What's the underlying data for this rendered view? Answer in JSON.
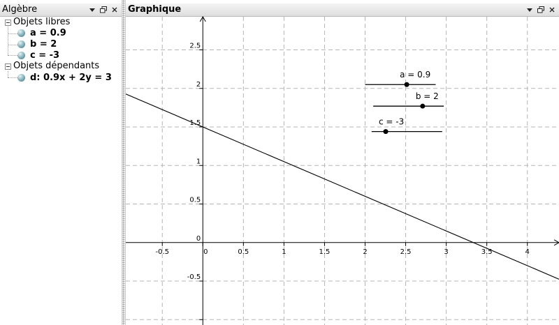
{
  "algebra": {
    "title": "Algèbre",
    "free_objects_label": "Objets libres",
    "dependent_objects_label": "Objets dépendants",
    "free_objects": [
      {
        "label": "a = 0.9"
      },
      {
        "label": "b = 2"
      },
      {
        "label": "c = -3"
      }
    ],
    "dependent_objects": [
      {
        "label": "d: 0.9x + 2y = 3"
      }
    ]
  },
  "graphics": {
    "title": "Graphique",
    "x_axis": {
      "min": -0.95,
      "max": 4.39,
      "ticks": [
        -0.5,
        0,
        0.5,
        1,
        1.5,
        2,
        2.5,
        3,
        3.5,
        4
      ],
      "tick_labels": [
        "-0.5",
        "0",
        "0.5",
        "1",
        "1.5",
        "2",
        "2.5",
        "3",
        "3.5",
        "4"
      ]
    },
    "y_axis": {
      "min": -1.07,
      "max": 2.93,
      "ticks": [
        -1,
        -0.5,
        0.5,
        1,
        1.5,
        2,
        2.5
      ],
      "tick_labels": [
        "",
        "-0.5",
        "0.5",
        "1",
        "1.5",
        "2",
        "2.5"
      ],
      "origin_label": "0"
    },
    "grid": true,
    "line": {
      "name": "d",
      "a": 0.9,
      "b": 2,
      "c": 3
    },
    "sliders": [
      {
        "name": "a",
        "label": "a = 0.9",
        "value": 0.9,
        "min": -5,
        "max": 5,
        "start_x": 2.0,
        "end_x": 2.87,
        "y": 2.05
      },
      {
        "name": "b",
        "label": "b = 2",
        "value": 2,
        "min": -5,
        "max": 5,
        "start_x": 2.1,
        "end_x": 2.97,
        "y": 1.77
      },
      {
        "name": "c",
        "label": "c = -3",
        "value": -3,
        "min": -5,
        "max": 5,
        "start_x": 2.08,
        "end_x": 2.95,
        "y": 1.44
      }
    ]
  }
}
